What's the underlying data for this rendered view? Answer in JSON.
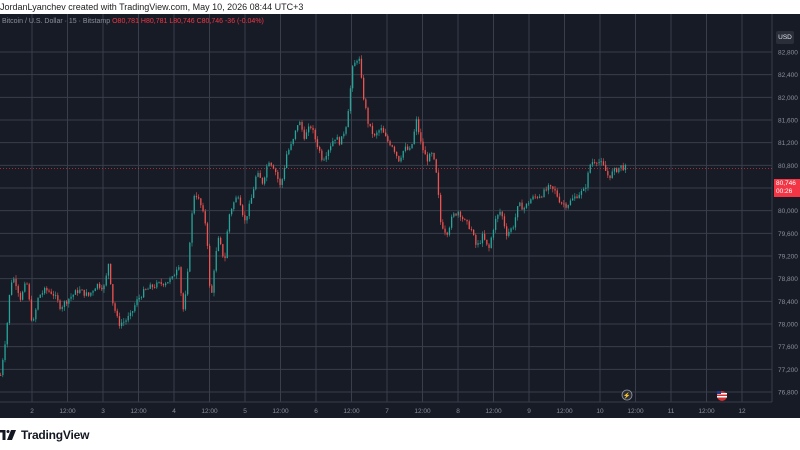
{
  "header": {
    "attribution": "JordanLyanchev created with TradingView.com, May 10, 2026 08:44 UTC+3"
  },
  "symbol": {
    "name": "Bitcoin / U.S. Dollar · 15 · Bitstamp",
    "ohlc": "O80,781 H80,781 L80,746 C80,746 -36 (-0.04%)"
  },
  "price_scale": {
    "currency_label": "USD",
    "last_price": "80,746",
    "countdown": "00:26"
  },
  "footer": {
    "brand": "TradingView"
  },
  "colors": {
    "background": "#171b26",
    "grid": "#3a3e4a",
    "up": "#26a69a",
    "down": "#ef5350",
    "axis_text": "#8a8f9c",
    "price_tag": "#f23645"
  },
  "chart_data": {
    "type": "candlestick",
    "symbol": "Bitcoin / U.S. Dollar",
    "timeframe": "15",
    "exchange": "Bitstamp",
    "y_ticks": [
      "82,800",
      "82,400",
      "82,000",
      "81,600",
      "81,200",
      "80,800",
      "80,400",
      "80,000",
      "79,600",
      "79,200",
      "78,800",
      "78,400",
      "78,000",
      "77,600",
      "77,200",
      "76,800"
    ],
    "ylim": [
      76,
      650,
      82,
      950
    ],
    "x_ticks": [
      "2",
      "12:00",
      "3",
      "12:00",
      "4",
      "12:00",
      "5",
      "12:00",
      "6",
      "12:00",
      "7",
      "12:00",
      "8",
      "12:00",
      "9",
      "12:00",
      "10",
      "12:00",
      "11",
      "12:00",
      "12"
    ],
    "grid": true,
    "price_path": [
      [
        0,
        77100
      ],
      [
        3,
        77500
      ],
      [
        6,
        77900
      ],
      [
        10,
        78750
      ],
      [
        14,
        78800
      ],
      [
        20,
        78450
      ],
      [
        26,
        78750
      ],
      [
        32,
        77950
      ],
      [
        38,
        78500
      ],
      [
        45,
        78600
      ],
      [
        52,
        78550
      ],
      [
        60,
        78300
      ],
      [
        68,
        78450
      ],
      [
        78,
        78600
      ],
      [
        88,
        78500
      ],
      [
        96,
        78700
      ],
      [
        104,
        78650
      ],
      [
        108,
        79100
      ],
      [
        112,
        78400
      ],
      [
        118,
        78000
      ],
      [
        124,
        78050
      ],
      [
        130,
        78150
      ],
      [
        136,
        78400
      ],
      [
        142,
        78550
      ],
      [
        150,
        78650
      ],
      [
        158,
        78700
      ],
      [
        166,
        78750
      ],
      [
        172,
        78800
      ],
      [
        178,
        79100
      ],
      [
        182,
        78200
      ],
      [
        186,
        78600
      ],
      [
        190,
        79700
      ],
      [
        194,
        80350
      ],
      [
        200,
        80100
      ],
      [
        206,
        79700
      ],
      [
        210,
        78300
      ],
      [
        214,
        79100
      ],
      [
        218,
        79500
      ],
      [
        224,
        79100
      ],
      [
        228,
        79900
      ],
      [
        232,
        80100
      ],
      [
        238,
        80300
      ],
      [
        244,
        79800
      ],
      [
        250,
        80150
      ],
      [
        256,
        80650
      ],
      [
        262,
        80500
      ],
      [
        268,
        80900
      ],
      [
        274,
        80750
      ],
      [
        280,
        80400
      ],
      [
        286,
        81000
      ],
      [
        292,
        81200
      ],
      [
        298,
        81600
      ],
      [
        304,
        81300
      ],
      [
        310,
        81500
      ],
      [
        316,
        81200
      ],
      [
        322,
        80900
      ],
      [
        328,
        81100
      ],
      [
        334,
        81300
      ],
      [
        340,
        81200
      ],
      [
        346,
        81550
      ],
      [
        352,
        82500
      ],
      [
        358,
        82750
      ],
      [
        362,
        82100
      ],
      [
        368,
        81500
      ],
      [
        374,
        81300
      ],
      [
        380,
        81450
      ],
      [
        386,
        81250
      ],
      [
        392,
        81150
      ],
      [
        398,
        80900
      ],
      [
        404,
        81100
      ],
      [
        410,
        81050
      ],
      [
        416,
        81600
      ],
      [
        420,
        81200
      ],
      [
        426,
        80900
      ],
      [
        432,
        81000
      ],
      [
        436,
        80600
      ],
      [
        440,
        79800
      ],
      [
        446,
        79600
      ],
      [
        452,
        79900
      ],
      [
        458,
        80000
      ],
      [
        464,
        79800
      ],
      [
        470,
        79700
      ],
      [
        476,
        79350
      ],
      [
        482,
        79550
      ],
      [
        488,
        79300
      ],
      [
        494,
        79800
      ],
      [
        500,
        80000
      ],
      [
        506,
        79600
      ],
      [
        512,
        79700
      ],
      [
        518,
        80100
      ],
      [
        524,
        80050
      ],
      [
        530,
        80200
      ],
      [
        536,
        80250
      ],
      [
        542,
        80300
      ],
      [
        548,
        80400
      ],
      [
        554,
        80350
      ],
      [
        560,
        80150
      ],
      [
        566,
        80100
      ],
      [
        572,
        80200
      ],
      [
        578,
        80300
      ],
      [
        584,
        80350
      ],
      [
        590,
        80850
      ],
      [
        596,
        80900
      ],
      [
        602,
        80800
      ],
      [
        608,
        80600
      ],
      [
        614,
        80700
      ],
      [
        620,
        80780
      ],
      [
        626,
        80746
      ]
    ]
  }
}
